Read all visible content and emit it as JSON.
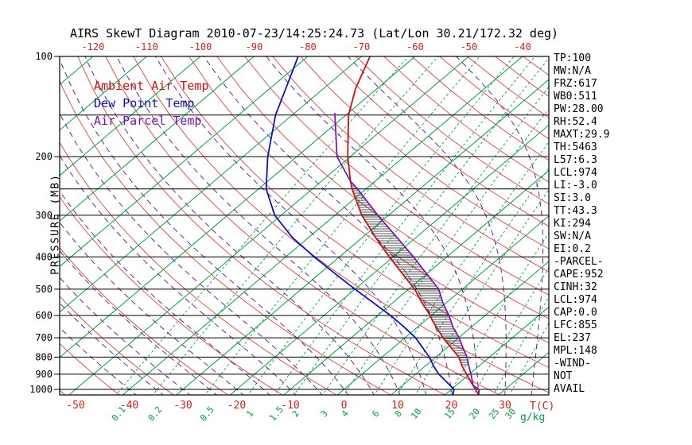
{
  "title": "AIRS SkewT Diagram 2010-07-23/14:25:24.73 (Lat/Lon 30.21/172.32 deg)",
  "legend": [
    {
      "label": "Ambient Air Temp",
      "color": "#cc1111"
    },
    {
      "label": "Dew Point Temp",
      "color": "#1111bb"
    },
    {
      "label": "Air Parcel Temp",
      "color": "#7a10b4"
    }
  ],
  "axes": {
    "pressure_label": "PRESSURE (MB)",
    "pressure_ticks": [
      100,
      200,
      300,
      400,
      500,
      600,
      700,
      800,
      900,
      1000
    ],
    "top_temp_ticks": [
      -120,
      -110,
      -100,
      -90,
      -80,
      -70,
      -60,
      -50,
      -40
    ],
    "bottom_temp_ticks": [
      -50,
      -40,
      -30,
      -20,
      -10,
      0,
      10,
      20,
      30
    ],
    "temp_unit_label": "T(C)",
    "mixing_ratio_ticks": [
      0.1,
      0.2,
      0.5,
      1,
      1.5,
      2,
      3,
      4,
      6,
      8,
      10,
      15,
      20,
      25,
      30
    ],
    "mixing_unit_label": "g/kg"
  },
  "stats": [
    "TP:100",
    "MW:N/A",
    "FRZ:617",
    "WB0:511",
    "PW:28.00",
    "RH:52.4",
    "MAXT:29.9",
    "TH:5463",
    "L57:6.3",
    "LCL:974",
    "LI:-3.0",
    "SI:3.0",
    "TT:43.3",
    "KI:294",
    "SW:N/A",
    "EI:0.2",
    "-PARCEL-",
    "CAPE:952",
    "CINH:32",
    "LCL:974",
    "CAP:0.0",
    "LFC:855",
    "EL:237",
    "MPL:148",
    "-WIND-",
    "NOT",
    "AVAIL"
  ],
  "colors": {
    "isotherm": "#00a04b",
    "dry_adiabat": "#dc4444",
    "moist_adiabat": "#550fa0",
    "mixing_ratio": "#00a04b",
    "pressure_line": "#000000",
    "frame": "#000000",
    "hatch": "#1a1a1a",
    "top_tick_text": "#cc2222",
    "bottom_temp_text": "#cc2222",
    "mixing_label_text": "#00a04b",
    "pressure_text": "#000000"
  },
  "chart_data": {
    "type": "line",
    "subtype": "skew-t-log-p",
    "title": "AIRS SkewT Diagram 2010-07-23/14:25:24.73 (Lat/Lon 30.21/172.32 deg)",
    "xlabel": "T(C)",
    "ylabel": "PRESSURE (MB)",
    "secondary_xlabel": "g/kg",
    "y_scale": "log",
    "ylim": [
      100,
      1050
    ],
    "x_bottom_range_C": [
      -50,
      35
    ],
    "x_top_range_C": [
      -120,
      -40
    ],
    "grid": "skew-t background (isotherms, dry/moist adiabats, mixing ratio lines)",
    "legend_position": "upper-left-inside",
    "series": [
      {
        "name": "Ambient Air Temp",
        "color": "#cc1111",
        "units": [
          "mb",
          "C"
        ],
        "points": [
          [
            1040,
            26.3
          ],
          [
            1000,
            24.5
          ],
          [
            950,
            22.0
          ],
          [
            900,
            19.5
          ],
          [
            850,
            16.8
          ],
          [
            800,
            14.3
          ],
          [
            750,
            10.8
          ],
          [
            700,
            7.1
          ],
          [
            650,
            3.5
          ],
          [
            617,
            1.0
          ],
          [
            600,
            -0.2
          ],
          [
            550,
            -4.5
          ],
          [
            500,
            -8.9
          ],
          [
            450,
            -14.5
          ],
          [
            400,
            -20.7
          ],
          [
            350,
            -27.5
          ],
          [
            300,
            -35.0
          ],
          [
            250,
            -42.6
          ],
          [
            237,
            -44.6
          ],
          [
            200,
            -50.5
          ],
          [
            150,
            -59.5
          ],
          [
            125,
            -64.0
          ],
          [
            100,
            -68.4
          ]
        ]
      },
      {
        "name": "Dew Point Temp",
        "color": "#1111bb",
        "units": [
          "mb",
          "C"
        ],
        "points": [
          [
            1040,
            21.5
          ],
          [
            1000,
            20.5
          ],
          [
            950,
            17.5
          ],
          [
            900,
            14.3
          ],
          [
            850,
            11.5
          ],
          [
            800,
            8.8
          ],
          [
            750,
            5.5
          ],
          [
            700,
            2.0
          ],
          [
            650,
            -2.5
          ],
          [
            600,
            -7.6
          ],
          [
            550,
            -13.5
          ],
          [
            500,
            -20.0
          ],
          [
            450,
            -27.0
          ],
          [
            400,
            -34.7
          ],
          [
            350,
            -43.0
          ],
          [
            300,
            -51.2
          ],
          [
            250,
            -58.6
          ],
          [
            200,
            -65.4
          ],
          [
            150,
            -73.1
          ],
          [
            125,
            -77.0
          ],
          [
            100,
            -81.8
          ]
        ]
      },
      {
        "name": "Air Parcel Temp",
        "color": "#7a10b4",
        "units": [
          "mb",
          "C"
        ],
        "points": [
          [
            1040,
            26.3
          ],
          [
            1000,
            25.2
          ],
          [
            974,
            23.2
          ],
          [
            950,
            22.3
          ],
          [
            900,
            20.3
          ],
          [
            855,
            18.3
          ],
          [
            800,
            15.8
          ],
          [
            750,
            13.0
          ],
          [
            700,
            10.1
          ],
          [
            650,
            6.6
          ],
          [
            600,
            3.3
          ],
          [
            550,
            -0.6
          ],
          [
            500,
            -4.4
          ],
          [
            450,
            -10.0
          ],
          [
            400,
            -16.2
          ],
          [
            350,
            -23.5
          ],
          [
            300,
            -32.0
          ],
          [
            250,
            -41.6
          ],
          [
            237,
            -44.6
          ],
          [
            200,
            -52.5
          ],
          [
            148,
            -62.5
          ]
        ]
      }
    ],
    "cape_hatch": {
      "lfc_mb": 855,
      "el_mb": 237,
      "between": [
        "Ambient Air Temp",
        "Air Parcel Temp"
      ]
    },
    "background_lines": {
      "isotherms_C": {
        "from": -120,
        "to": 40,
        "step": 10
      },
      "dry_adiabats_theta_K": {
        "from": 220,
        "to": 470,
        "step": 10
      },
      "moist_adiabats_thetaw_C": {
        "from": -40,
        "to": 40,
        "step": 5
      },
      "mixing_ratio_g_kg": [
        0.1,
        0.2,
        0.5,
        1,
        1.5,
        2,
        3,
        4,
        6,
        8,
        10,
        15,
        20,
        25,
        30
      ],
      "pressure_lines_mb": [
        100,
        150,
        200,
        250,
        300,
        400,
        500,
        600,
        700,
        800,
        900,
        1000
      ]
    }
  }
}
